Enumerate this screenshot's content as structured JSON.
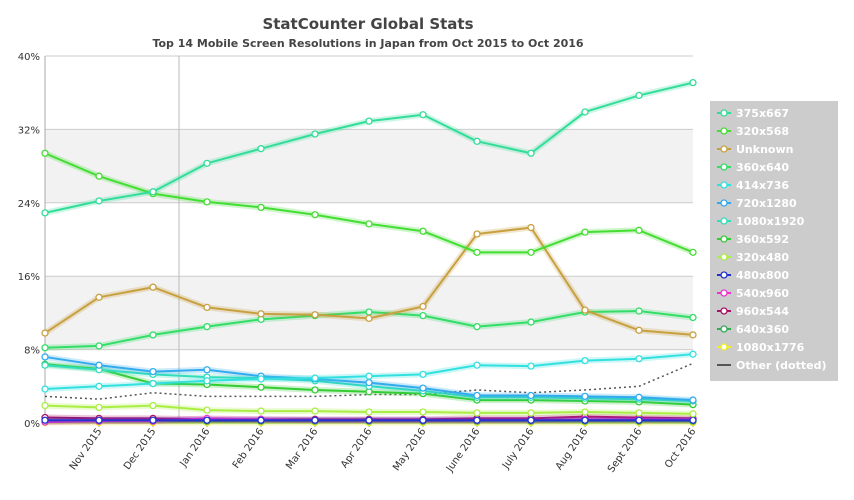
{
  "chart_data": {
    "type": "line",
    "title": "StatCounter Global Stats",
    "subtitle": "Top 14 Mobile Screen Resolutions in Japan from Oct 2015 to Oct 2016",
    "xlabel": "",
    "ylabel": "",
    "ylim": [
      0,
      40
    ],
    "yticks": [
      "0%",
      "8%",
      "16%",
      "24%",
      "32%",
      "40%"
    ],
    "grid": true,
    "legend_position": "right",
    "categories": [
      "Oct 2015",
      "Nov 2015",
      "Dec 2015",
      "Jan 2016",
      "Feb 2016",
      "Mar 2016",
      "Apr 2016",
      "May 2016",
      "June 2016",
      "July 2016",
      "Aug 2016",
      "Sept 2016",
      "Oct 2016"
    ],
    "x_tick_labels": [
      "Nov 2015",
      "Dec 2015",
      "Jan 2016",
      "Feb 2016",
      "Mar 2016",
      "Apr 2016",
      "May 2016",
      "June 2016",
      "July 2016",
      "Aug 2016",
      "Sept 2016",
      "Oct 2016"
    ],
    "series": [
      {
        "name": "375x667",
        "color": "#33dd99",
        "values": [
          22.9,
          24.2,
          25.2,
          28.3,
          29.9,
          31.5,
          32.9,
          33.6,
          30.7,
          29.4,
          33.9,
          35.7,
          37.1
        ]
      },
      {
        "name": "320x568",
        "color": "#44dd33",
        "values": [
          29.4,
          26.9,
          25.0,
          24.1,
          23.5,
          22.7,
          21.7,
          20.9,
          18.6,
          18.6,
          20.8,
          21.0,
          18.6
        ]
      },
      {
        "name": "Unknown",
        "color": "#c8a040",
        "values": [
          9.8,
          13.7,
          14.8,
          12.6,
          11.9,
          11.8,
          11.4,
          12.7,
          20.6,
          21.3,
          12.3,
          10.1,
          9.6
        ]
      },
      {
        "name": "360x640",
        "color": "#33dd66",
        "values": [
          8.2,
          8.4,
          9.6,
          10.5,
          11.3,
          11.7,
          12.1,
          11.7,
          10.5,
          11.0,
          12.1,
          12.2,
          11.5
        ]
      },
      {
        "name": "414x736",
        "color": "#33e0e0",
        "values": [
          3.7,
          4.0,
          4.3,
          4.6,
          4.8,
          4.9,
          5.1,
          5.3,
          6.3,
          6.2,
          6.8,
          7.0,
          7.5
        ]
      },
      {
        "name": "720x1280",
        "color": "#33aaee",
        "values": [
          7.2,
          6.3,
          5.6,
          5.8,
          5.1,
          4.8,
          4.4,
          3.8,
          3.0,
          3.0,
          2.9,
          2.8,
          2.5
        ]
      },
      {
        "name": "1080x1920",
        "color": "#33ddbb",
        "values": [
          6.3,
          5.8,
          5.3,
          5.0,
          4.9,
          4.6,
          4.0,
          3.5,
          2.8,
          2.8,
          2.7,
          2.6,
          2.4
        ]
      },
      {
        "name": "360x592",
        "color": "#33cc33",
        "values": [
          6.4,
          5.9,
          4.3,
          4.2,
          3.9,
          3.6,
          3.4,
          3.2,
          2.5,
          2.5,
          2.4,
          2.3,
          2.0
        ]
      },
      {
        "name": "320x480",
        "color": "#aaee44",
        "values": [
          1.9,
          1.7,
          1.9,
          1.4,
          1.3,
          1.3,
          1.2,
          1.2,
          1.1,
          1.1,
          1.2,
          1.1,
          1.0
        ]
      },
      {
        "name": "480x800",
        "color": "#2233cc",
        "values": [
          0.3,
          0.3,
          0.3,
          0.3,
          0.3,
          0.3,
          0.3,
          0.3,
          0.3,
          0.3,
          0.3,
          0.3,
          0.3
        ]
      },
      {
        "name": "540x960",
        "color": "#ee33cc",
        "values": [
          0.1,
          0.2,
          0.2,
          0.5,
          0.4,
          0.3,
          0.3,
          0.3,
          0.3,
          0.3,
          0.4,
          0.4,
          0.4
        ]
      },
      {
        "name": "960x544",
        "color": "#aa1166",
        "values": [
          0.6,
          0.5,
          0.5,
          0.4,
          0.4,
          0.4,
          0.4,
          0.4,
          0.5,
          0.5,
          0.7,
          0.6,
          0.5
        ]
      },
      {
        "name": "640x360",
        "color": "#33aa55",
        "values": [
          0.2,
          0.2,
          0.2,
          0.2,
          0.2,
          0.2,
          0.2,
          0.2,
          0.2,
          0.2,
          0.2,
          0.2,
          0.2
        ]
      },
      {
        "name": "1080x1776",
        "color": "#eeee22",
        "values": [
          0.05,
          0.05,
          0.05,
          0.05,
          0.05,
          0.05,
          0.05,
          0.05,
          0.05,
          0.05,
          0.05,
          0.05,
          0.05
        ]
      },
      {
        "name": "Other (dotted)",
        "color": "#555555",
        "dotted": true,
        "values": [
          2.9,
          2.6,
          3.3,
          2.9,
          2.9,
          2.9,
          3.1,
          3.1,
          3.6,
          3.3,
          3.6,
          4.0,
          6.5
        ]
      }
    ]
  }
}
